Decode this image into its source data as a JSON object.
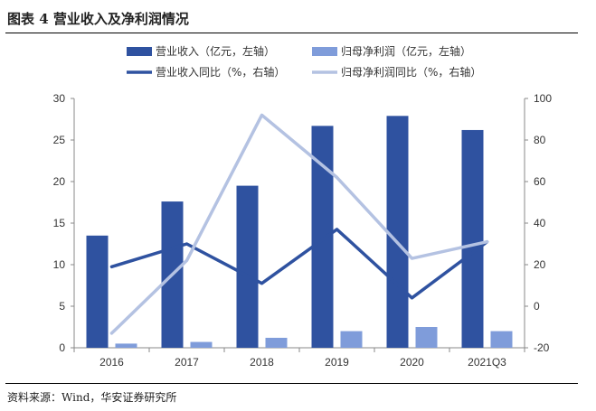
{
  "title": "图表 4  营业收入及净利润情况",
  "source": "资料来源：Wind，华安证券研究所",
  "colors": {
    "revenue": "#2F52A0",
    "profit": "#7F9CDA",
    "revenue_yoy": "#2F52A0",
    "profit_yoy": "#B4C2E2"
  },
  "chart_data": {
    "type": "bar",
    "categories": [
      "2016",
      "2017",
      "2018",
      "2019",
      "2020",
      "2021Q3"
    ],
    "series": [
      {
        "name": "营业收入（亿元，左轴）",
        "kind": "bar",
        "axis": "left",
        "values": [
          13.5,
          17.6,
          19.5,
          26.7,
          27.9,
          26.2
        ]
      },
      {
        "name": "归母净利润（亿元，左轴）",
        "kind": "bar",
        "axis": "left",
        "values": [
          0.5,
          0.7,
          1.2,
          2.0,
          2.5,
          2.0
        ]
      },
      {
        "name": "营业收入同比（%，右轴）",
        "kind": "line",
        "axis": "right",
        "values": [
          19,
          30,
          11,
          37,
          4,
          31
        ]
      },
      {
        "name": "归母净利润同比（%，右轴）",
        "kind": "line",
        "axis": "right",
        "values": [
          -13,
          22,
          92,
          62,
          23,
          31
        ]
      }
    ],
    "left_axis": {
      "min": 0,
      "max": 30,
      "ticks": [
        "0",
        "5",
        "10",
        "15",
        "20",
        "25",
        "30"
      ]
    },
    "right_axis": {
      "min": -20,
      "max": 100,
      "ticks": [
        "-20",
        "0",
        "20",
        "40",
        "60",
        "80",
        "100"
      ]
    },
    "legend_position": "top"
  }
}
